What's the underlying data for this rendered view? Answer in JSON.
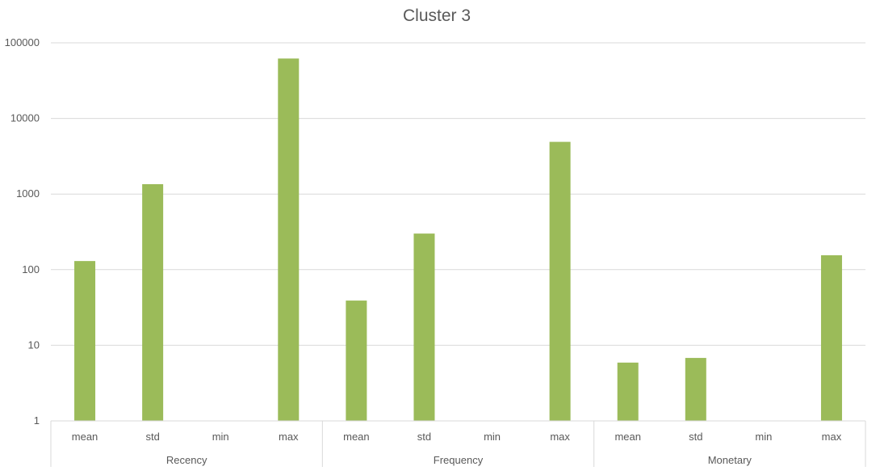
{
  "chart_data": {
    "type": "bar",
    "title": "Cluster 3",
    "yscale": "log",
    "ylim": [
      1,
      100000
    ],
    "yticks": [
      "1",
      "10",
      "100",
      "1000",
      "10000",
      "100000"
    ],
    "grid": true,
    "groups": [
      {
        "name": "Recency",
        "categories": [
          "mean",
          "std",
          "min",
          "max"
        ],
        "values": [
          130,
          1350,
          1,
          62000
        ]
      },
      {
        "name": "Frequency",
        "categories": [
          "mean",
          "std",
          "min",
          "max"
        ],
        "values": [
          39,
          300,
          1,
          4900
        ]
      },
      {
        "name": "Monetary",
        "categories": [
          "mean",
          "std",
          "min",
          "max"
        ],
        "values": [
          5.9,
          6.8,
          1,
          155
        ]
      }
    ],
    "bar_color": "#9bbb59"
  }
}
